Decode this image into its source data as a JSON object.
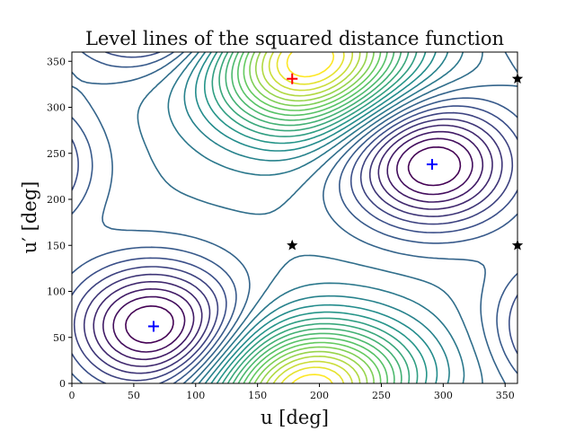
{
  "chart_data": {
    "type": "contour",
    "title": "Level lines of the squared distance function",
    "xlabel": "u [deg]",
    "ylabel": "u′ [deg]",
    "xlim": [
      0,
      360
    ],
    "ylim": [
      0,
      360
    ],
    "xticks": [
      0,
      50,
      100,
      150,
      200,
      250,
      300,
      350
    ],
    "yticks": [
      0,
      50,
      100,
      150,
      200,
      250,
      300,
      350
    ],
    "colormap": [
      "#440154",
      "#3b528b",
      "#21918c",
      "#5ec962",
      "#fde725"
    ],
    "grid": false,
    "markers": [
      {
        "kind": "max",
        "symbol": "plus",
        "color": "#ff0000",
        "points": [
          [
            178,
            331
          ]
        ]
      },
      {
        "kind": "min",
        "symbol": "plus",
        "color": "#0000ff",
        "points": [
          [
            66,
            62
          ],
          [
            291,
            238
          ]
        ]
      },
      {
        "kind": "saddle",
        "symbol": "star",
        "color": "#000000",
        "points": [
          [
            178,
            150
          ],
          [
            360,
            150
          ],
          [
            360,
            331
          ]
        ]
      }
    ]
  }
}
